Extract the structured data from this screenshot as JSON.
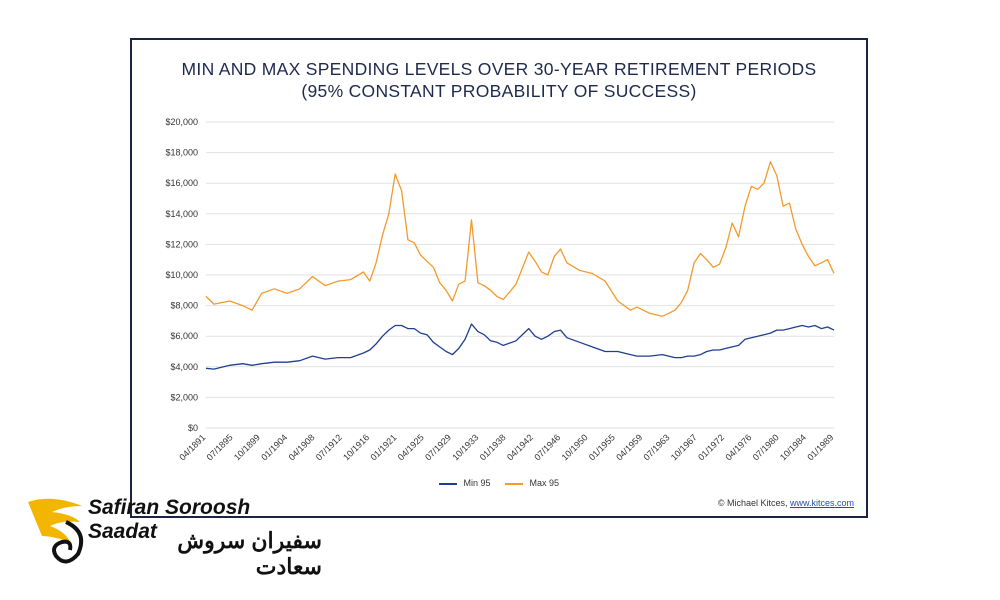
{
  "chart_data": {
    "type": "line",
    "title": "MIN AND MAX SPENDING LEVELS OVER 30-YEAR RETIREMENT PERIODS",
    "subtitle": "(95% CONSTANT PROBABILITY OF SUCCESS)",
    "ylim": [
      0,
      20000
    ],
    "yticks": [
      "$0",
      "$2,000",
      "$4,000",
      "$6,000",
      "$8,000",
      "$10,000",
      "$12,000",
      "$14,000",
      "$16,000",
      "$18,000",
      "$20,000"
    ],
    "xticks": [
      "04/1891",
      "07/1895",
      "10/1899",
      "01/1904",
      "04/1908",
      "07/1912",
      "10/1916",
      "01/1921",
      "04/1925",
      "07/1929",
      "10/1933",
      "01/1938",
      "04/1942",
      "07/1946",
      "10/1950",
      "01/1955",
      "04/1959",
      "07/1963",
      "10/1967",
      "01/1972",
      "04/1976",
      "07/1980",
      "10/1984",
      "01/1989"
    ],
    "x": [
      1891.25,
      1892.5,
      1895,
      1897,
      1898.5,
      1900,
      1902,
      1904,
      1906,
      1908,
      1910,
      1912,
      1914,
      1916,
      1917,
      1918,
      1919,
      1920,
      1921,
      1922,
      1923,
      1924,
      1925,
      1926,
      1927,
      1928,
      1929,
      1930,
      1931,
      1932,
      1933,
      1934,
      1935,
      1936,
      1937,
      1938,
      1940,
      1942,
      1943,
      1944,
      1945,
      1946,
      1947,
      1948,
      1950,
      1952,
      1954,
      1956,
      1958,
      1959,
      1961,
      1963,
      1964,
      1965,
      1966,
      1967,
      1968,
      1969,
      1970,
      1971,
      1972,
      1973,
      1974,
      1975,
      1976,
      1977,
      1978,
      1979,
      1980,
      1981,
      1982,
      1983,
      1984,
      1985,
      1986,
      1987,
      1988,
      1989,
      1990
    ],
    "series": [
      {
        "name": "Min 95",
        "color": "#1f3f8f",
        "values": [
          3900,
          3850,
          4100,
          4200,
          4100,
          4200,
          4300,
          4300,
          4400,
          4700,
          4500,
          4600,
          4600,
          4900,
          5100,
          5500,
          6000,
          6400,
          6700,
          6700,
          6500,
          6500,
          6200,
          6100,
          5600,
          5300,
          5000,
          4800,
          5200,
          5800,
          6800,
          6300,
          6100,
          5700,
          5600,
          5400,
          5700,
          6500,
          6000,
          5800,
          6000,
          6300,
          6400,
          5900,
          5600,
          5300,
          5000,
          5000,
          4800,
          4700,
          4700,
          4800,
          4700,
          4600,
          4600,
          4700,
          4700,
          4800,
          5000,
          5100,
          5100,
          5200,
          5300,
          5400,
          5800,
          5900,
          6000,
          6100,
          6200,
          6400,
          6400,
          6500,
          6600,
          6700,
          6600,
          6700,
          6500,
          6600,
          6400
        ]
      },
      {
        "name": "Max 95",
        "color": "#f39a2b",
        "values": [
          8600,
          8100,
          8300,
          8000,
          7700,
          8800,
          9100,
          8800,
          9100,
          9900,
          9300,
          9600,
          9700,
          10200,
          9600,
          10800,
          12600,
          14000,
          16600,
          15500,
          12300,
          12100,
          11300,
          10900,
          10500,
          9500,
          9000,
          8300,
          9400,
          9600,
          13600,
          9500,
          9300,
          9000,
          8600,
          8400,
          9400,
          11500,
          10900,
          10200,
          10000,
          11200,
          11700,
          10800,
          10300,
          10100,
          9600,
          8300,
          7700,
          7900,
          7500,
          7300,
          7500,
          7700,
          8200,
          9000,
          10800,
          11400,
          11000,
          10500,
          10700,
          11800,
          13400,
          12500,
          14500,
          15800,
          15600,
          16000,
          17400,
          16500,
          14500,
          14700,
          13000,
          12000,
          11200,
          10600,
          10800,
          11000,
          10100
        ]
      }
    ]
  },
  "credit": {
    "prefix": "© Michael Kitces, ",
    "link": "www.kitces.com"
  },
  "brand": {
    "name": "Safiran Soroosh Saadat",
    "name_fa": "سفیران سروش سعادت"
  },
  "colors": {
    "title": "#1d2a4e",
    "frame": "#1b2440",
    "brand_gold": "#f2b600"
  }
}
